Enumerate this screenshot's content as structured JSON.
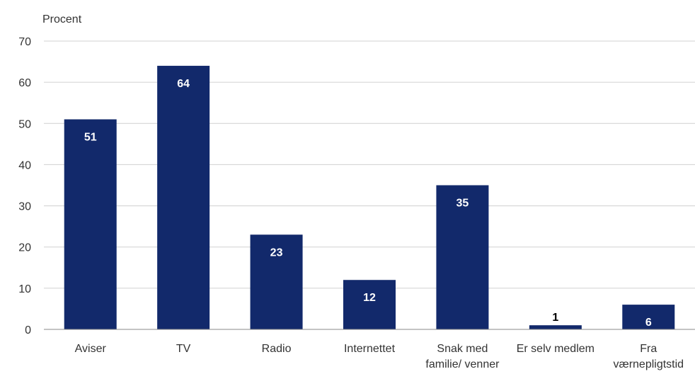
{
  "chart_data": {
    "type": "bar",
    "ylabel": "Procent",
    "categories": [
      [
        "Aviser"
      ],
      [
        "TV"
      ],
      [
        "Radio"
      ],
      [
        "Internettet"
      ],
      [
        "Snak med",
        "familie/ venner"
      ],
      [
        "Er selv medlem"
      ],
      [
        "Fra",
        "værnepligtstid"
      ]
    ],
    "values": [
      51,
      64,
      23,
      12,
      35,
      1,
      6
    ],
    "ylim": [
      0,
      70
    ],
    "yticks": [
      0,
      10,
      20,
      30,
      40,
      50,
      60,
      70
    ],
    "grid": true,
    "legend": "none",
    "colors": {
      "bar": "#12296b",
      "label_inside": "#ffffff",
      "label_outside": "#000000"
    }
  }
}
